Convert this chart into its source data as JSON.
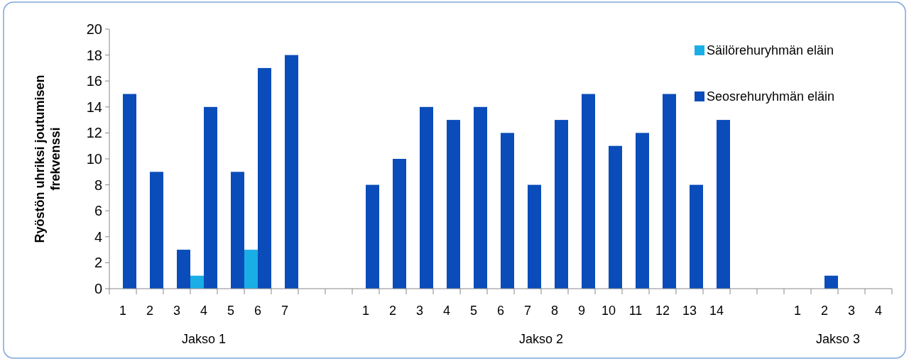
{
  "chart_data": {
    "type": "bar",
    "ylabel": "Ryöstön uhriksi joutumisen frekvenssi",
    "categories": [
      "1",
      "2",
      "3",
      "4",
      "5",
      "6",
      "7",
      null,
      null,
      "1",
      "2",
      "3",
      "4",
      "5",
      "6",
      "7",
      "8",
      "9",
      "10",
      "11",
      "12",
      "13",
      "14",
      null,
      null,
      "1",
      "2",
      "3",
      "4"
    ],
    "series": [
      {
        "name": "Säilörehuryhmän eläin",
        "color": "#1aaee6",
        "values": [
          null,
          null,
          null,
          1,
          null,
          3,
          null,
          null,
          null,
          null,
          null,
          null,
          null,
          null,
          null,
          null,
          null,
          null,
          null,
          null,
          null,
          null,
          null,
          null,
          null,
          null,
          null,
          null,
          null
        ]
      },
      {
        "name": "Seosrehuryhmän eläin",
        "color": "#0a4cba",
        "values": [
          15,
          9,
          3,
          14,
          9,
          17,
          18,
          null,
          null,
          8,
          10,
          14,
          13,
          14,
          12,
          8,
          13,
          15,
          11,
          12,
          15,
          8,
          13,
          null,
          null,
          null,
          1,
          null,
          null
        ]
      }
    ],
    "ylim": [
      0,
      20
    ],
    "yticks": [
      0,
      2,
      4,
      6,
      8,
      10,
      12,
      14,
      16,
      18,
      20
    ],
    "grid": false,
    "legend": "top right",
    "annotations": [
      "Jakso 1",
      "Jakso 2",
      "Jakso 3"
    ]
  }
}
